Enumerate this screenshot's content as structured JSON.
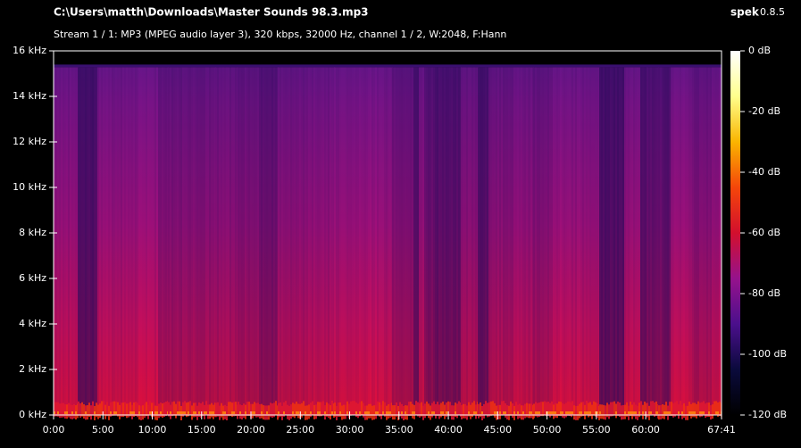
{
  "chart_data": {
    "type": "spectrogram",
    "title": "C:\\Users\\matth\\Downloads\\Master Sounds 98.3.mp3",
    "subtitle": "Stream 1 / 1: MP3 (MPEG audio layer 3), 320 kbps, 32000 Hz, channel 1 / 2, W:2048, F:Hann",
    "app_name": "spek",
    "app_version": "0.8.5",
    "xlim": [
      0,
      4061
    ],
    "xticks": [
      {
        "value": 0,
        "label": "0:00"
      },
      {
        "value": 300,
        "label": "5:00"
      },
      {
        "value": 600,
        "label": "10:00"
      },
      {
        "value": 900,
        "label": "15:00"
      },
      {
        "value": 1200,
        "label": "20:00"
      },
      {
        "value": 1500,
        "label": "25:00"
      },
      {
        "value": 1800,
        "label": "30:00"
      },
      {
        "value": 2100,
        "label": "35:00"
      },
      {
        "value": 2400,
        "label": "40:00"
      },
      {
        "value": 2700,
        "label": "45:00"
      },
      {
        "value": 3000,
        "label": "50:00"
      },
      {
        "value": 3300,
        "label": "55:00"
      },
      {
        "value": 3600,
        "label": "60:00"
      },
      {
        "value": 4061,
        "label": "67:41"
      }
    ],
    "ylim": [
      0,
      16
    ],
    "yticks": [
      {
        "value": 0,
        "label": "0 kHz"
      },
      {
        "value": 2,
        "label": "2 kHz"
      },
      {
        "value": 4,
        "label": "4 kHz"
      },
      {
        "value": 6,
        "label": "6 kHz"
      },
      {
        "value": 8,
        "label": "8 kHz"
      },
      {
        "value": 10,
        "label": "10 kHz"
      },
      {
        "value": 12,
        "label": "12 kHz"
      },
      {
        "value": 14,
        "label": "14 kHz"
      },
      {
        "value": 16,
        "label": "16 kHz"
      }
    ],
    "zlim": [
      -120,
      0
    ],
    "zticks": [
      {
        "value": 0,
        "label": "0 dB"
      },
      {
        "value": -20,
        "label": "-20 dB"
      },
      {
        "value": -40,
        "label": "-40 dB"
      },
      {
        "value": -60,
        "label": "-60 dB"
      },
      {
        "value": -80,
        "label": "-80 dB"
      },
      {
        "value": -100,
        "label": "-100 dB"
      },
      {
        "value": -120,
        "label": "-120 dB"
      }
    ],
    "colormap": [
      "#000000",
      "#0a0a3c",
      "#4b0f8c",
      "#96128c",
      "#d20f2d",
      "#f5460a",
      "#fab400",
      "#ffff8c",
      "#ffffff"
    ]
  }
}
